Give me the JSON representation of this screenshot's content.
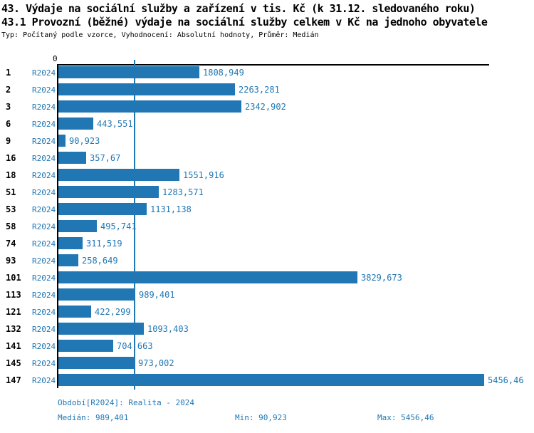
{
  "header": {
    "title_line1": "43. Výdaje na sociální služby a zařízení v tis. Kč (k 31.12. sledovaného roku)",
    "title_line2": "43.1 Provozní (běžné) výdaje na sociální služby celkem v Kč na jednoho obyvatele",
    "meta": "Typ: Počítaný podle vzorce, Vyhodnocení: Absolutní hodnoty, Průměr: Medián"
  },
  "chart_data": {
    "type": "bar",
    "orientation": "horizontal",
    "title": "43. Výdaje na sociální služby a zařízení v tis. Kč (k 31.12. sledovaného roku)",
    "subtitle": "43.1 Provozní (běžné) výdaje na sociální služby celkem v Kč na jednoho obyvatele",
    "series_label": "R2024",
    "categories": [
      "1",
      "2",
      "3",
      "6",
      "9",
      "16",
      "18",
      "51",
      "53",
      "58",
      "74",
      "93",
      "101",
      "113",
      "121",
      "132",
      "141",
      "145",
      "147"
    ],
    "values": [
      1808.949,
      2263.281,
      2342.902,
      443.551,
      90.923,
      357.67,
      1551.916,
      1283.571,
      1131.138,
      495.741,
      311.519,
      258.649,
      3829.673,
      989.401,
      422.299,
      1093.403,
      704.663,
      973.002,
      5456.46
    ],
    "value_labels": [
      "1808,949",
      "2263,281",
      "2342,902",
      "443,551",
      "90,923",
      "357,67",
      "1551,916",
      "1283,571",
      "1131,138",
      "495,741",
      "311,519",
      "258,649",
      "3829,673",
      "989,401",
      "422,299",
      "1093,403",
      "704,663",
      "973,002",
      "5456,46"
    ],
    "x_axis_ticks": [
      "0"
    ],
    "xlim": [
      0,
      5456.46
    ],
    "median_value": 989.401,
    "min_value": 90.923,
    "max_value": 5456.46,
    "grid": false,
    "legend_position": "none",
    "bar_color": "#2077b4",
    "median_line_color": "#2077b4"
  },
  "footer": {
    "period": "Období[R2024]: Realita - 2024",
    "median": "Medián: 989,401",
    "min": "Min: 90,923",
    "max": "Max: 5456,46"
  },
  "colors": {
    "accent": "#2077b4",
    "text": "#000000",
    "background": "#ffffff"
  }
}
